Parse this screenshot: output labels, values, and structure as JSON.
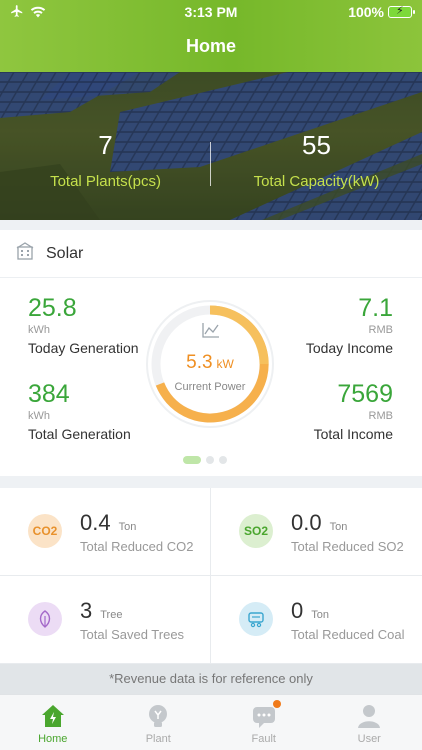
{
  "status_bar": {
    "time": "3:13 PM",
    "battery": "100%"
  },
  "header": {
    "title": "Home"
  },
  "hero": {
    "total_plants": "7",
    "total_plants_label": "Total Plants(pcs)",
    "total_capacity": "55",
    "total_capacity_label": "Total Capacity(kW)"
  },
  "solar": {
    "title": "Solar",
    "today_generation": {
      "value": "25.8",
      "unit": "kWh",
      "label": "Today Generation"
    },
    "today_income": {
      "value": "7.1",
      "unit": "RMB",
      "label": "Today Income"
    },
    "total_generation": {
      "value": "384",
      "unit": "kWh",
      "label": "Total Generation"
    },
    "total_income": {
      "value": "7569",
      "unit": "RMB",
      "label": "Total Income"
    },
    "current_power": {
      "value": "5.3",
      "unit": "kW",
      "label": "Current Power"
    },
    "page_indicator": {
      "pages": 3,
      "active": 1
    }
  },
  "environment": {
    "co2": {
      "icon_text": "CO2",
      "value": "0.4",
      "unit": "Ton",
      "label": "Total Reduced CO2"
    },
    "so2": {
      "icon_text": "SO2",
      "value": "0.0",
      "unit": "Ton",
      "label": "Total Reduced SO2"
    },
    "trees": {
      "value": "3",
      "unit": "Tree",
      "label": "Total Saved Trees"
    },
    "coal": {
      "value": "0",
      "unit": "Ton",
      "label": "Total Reduced Coal"
    }
  },
  "note": "*Revenue data is for reference only",
  "tabs": [
    {
      "label": "Home",
      "active": true
    },
    {
      "label": "Plant",
      "active": false
    },
    {
      "label": "Fault",
      "active": false
    },
    {
      "label": "User",
      "active": false
    }
  ],
  "colors": {
    "accent_green": "#3aa63a",
    "header_green": "#76b82a",
    "power_orange": "#ef8f22",
    "hero_label": "#c5e04c"
  }
}
